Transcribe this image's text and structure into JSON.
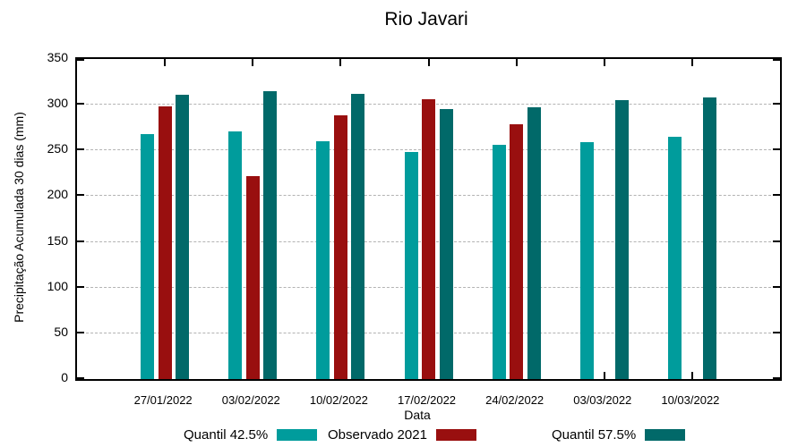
{
  "chart_data": {
    "type": "bar",
    "title": "Rio Javari",
    "xlabel": "Data",
    "ylabel": "Precipitação Acumulada 30 dias (mm)",
    "ylim": [
      0,
      350
    ],
    "yticks": [
      0,
      50,
      100,
      150,
      200,
      250,
      300,
      350
    ],
    "grid": true,
    "grid_color": "#b3b3b3",
    "legend_position": "bottom",
    "categories": [
      "27/01/2022",
      "03/02/2022",
      "10/02/2022",
      "17/02/2022",
      "24/02/2022",
      "03/03/2022",
      "10/03/2022"
    ],
    "series": [
      {
        "name": "Quantil 42.5%",
        "color": "#009C9C",
        "values": [
          268,
          271,
          260,
          248,
          256,
          259,
          265
        ]
      },
      {
        "name": "Observado 2021",
        "color": "#990F0F",
        "values": [
          298,
          222,
          288,
          306,
          279,
          null,
          null
        ]
      },
      {
        "name": "Quantil 57.5%",
        "color": "#016969",
        "values": [
          311,
          315,
          312,
          295,
          297,
          305,
          308
        ]
      }
    ]
  }
}
